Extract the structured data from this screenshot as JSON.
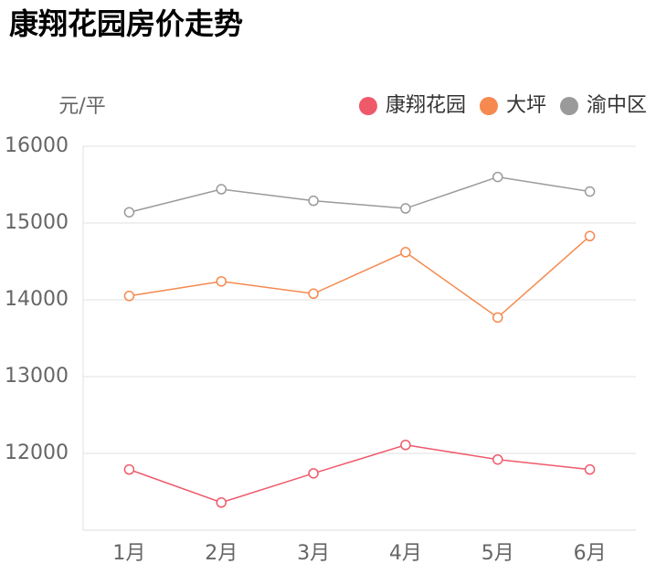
{
  "chart_data": {
    "type": "line",
    "title": "康翔花园房价走势",
    "y_label": "元/平",
    "categories": [
      "1月",
      "2月",
      "3月",
      "4月",
      "5月",
      "6月"
    ],
    "series": [
      {
        "name": "康翔花园",
        "color": "#ef5a6b",
        "values": [
          11790,
          11360,
          11740,
          12110,
          11920,
          11790
        ]
      },
      {
        "name": "大坪",
        "color": "#f5894f",
        "values": [
          14050,
          14240,
          14080,
          14620,
          13770,
          14830
        ]
      },
      {
        "name": "渝中区",
        "color": "#9a9a9a",
        "values": [
          15140,
          15440,
          15290,
          15190,
          15600,
          15410
        ]
      }
    ],
    "ylim": [
      11000,
      16000
    ],
    "yticks": [
      12000,
      13000,
      14000,
      15000,
      16000
    ],
    "grid": true,
    "legend": "top-right"
  }
}
